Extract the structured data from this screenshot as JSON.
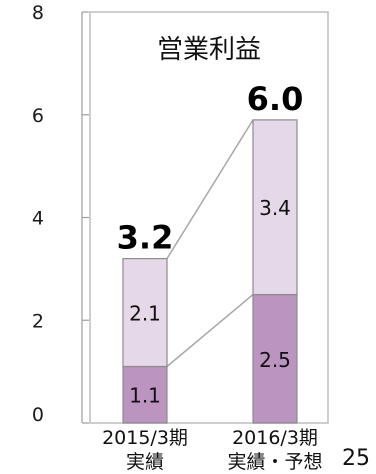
{
  "page_number": "25",
  "chart_data": {
    "type": "bar",
    "stacked": true,
    "title": "営業利益",
    "categories": [
      [
        "2015/3期",
        "実績"
      ],
      [
        "2016/3期",
        "実績・予想"
      ]
    ],
    "series": [
      {
        "values": [
          1.1,
          2.5
        ],
        "color": "#bb94c0"
      },
      {
        "values": [
          2.1,
          3.4
        ],
        "color": "#e5d8e8"
      }
    ],
    "totals": [
      "3.2",
      "6.0"
    ],
    "value_labels": [
      [
        "1.1",
        "2.5"
      ],
      [
        "2.1",
        "3.4"
      ]
    ],
    "yticks": [
      "0",
      "2",
      "4",
      "6",
      "8"
    ],
    "ylim": [
      0,
      8
    ],
    "connector_lines": true,
    "grid": false,
    "bar_stroke": "#8c8c8c",
    "frame_stroke": "#bdbdbd"
  }
}
